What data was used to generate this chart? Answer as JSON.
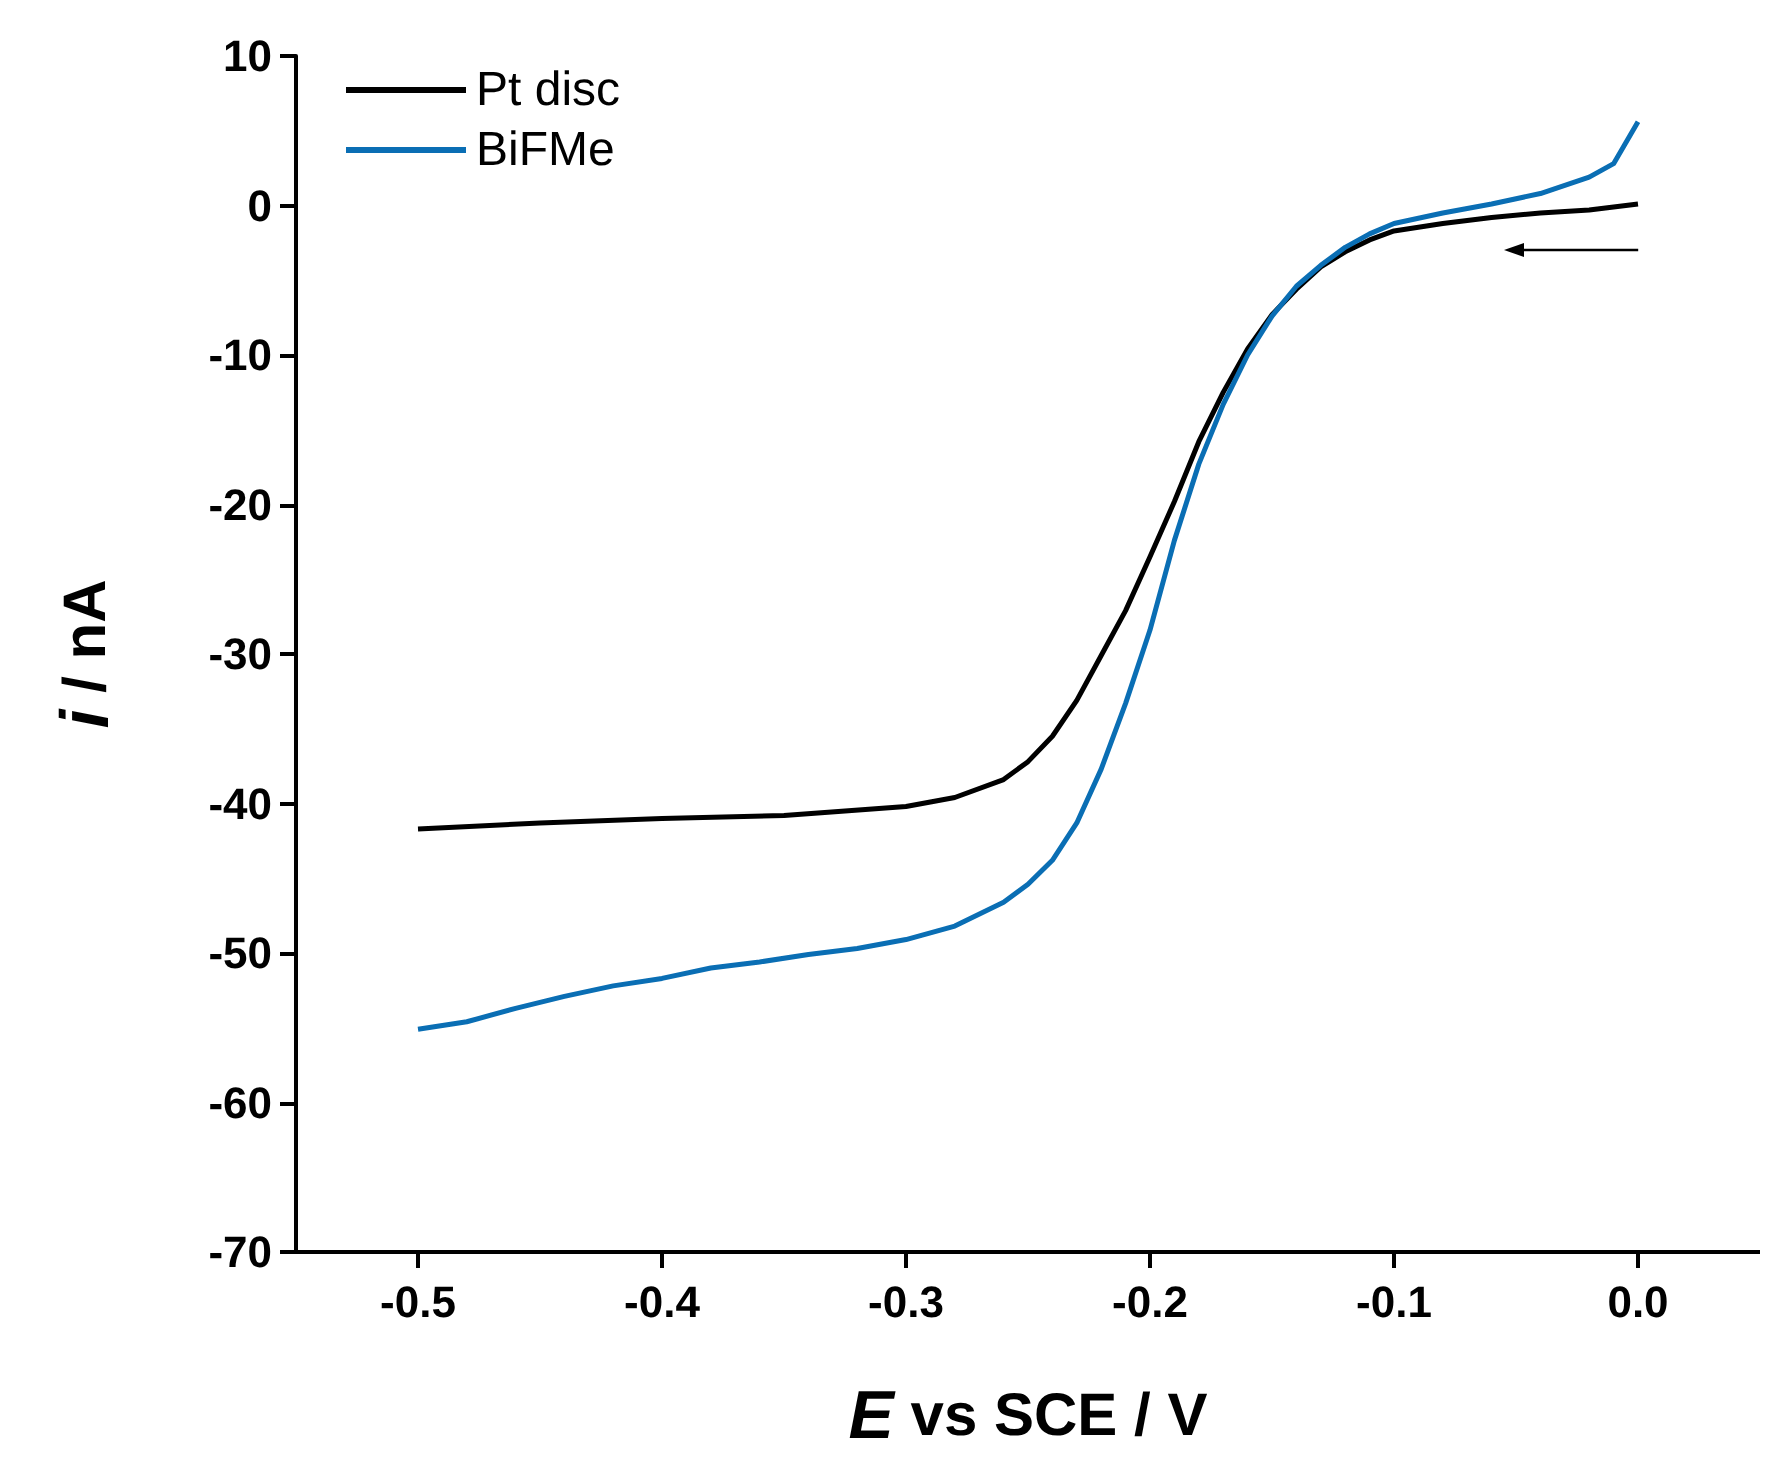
{
  "chart_data": {
    "type": "line",
    "xlabel": "E vs SCE / V",
    "ylabel": "i / nA",
    "xlim": [
      -0.55,
      0.05
    ],
    "ylim": [
      -70,
      10
    ],
    "xticks": [
      {
        "value": -0.5,
        "label": "-0.5"
      },
      {
        "value": -0.4,
        "label": "-0.4"
      },
      {
        "value": -0.3,
        "label": "-0.3"
      },
      {
        "value": -0.2,
        "label": "-0.2"
      },
      {
        "value": -0.1,
        "label": "-0.1"
      },
      {
        "value": 0,
        "label": "0.0"
      }
    ],
    "yticks": [
      -70,
      -60,
      -50,
      -40,
      -30,
      -20,
      -10,
      0,
      10
    ],
    "legend": "top left",
    "grid": false,
    "marker": "none",
    "line_style": "solid",
    "series": [
      {
        "name": "Pt disc",
        "color": "#000000",
        "x": [
          -0.5,
          -0.45,
          -0.4,
          -0.35,
          -0.3,
          -0.28,
          -0.26,
          -0.25,
          -0.24,
          -0.23,
          -0.22,
          -0.21,
          -0.2,
          -0.19,
          -0.18,
          -0.17,
          -0.16,
          -0.15,
          -0.14,
          -0.13,
          -0.12,
          -0.11,
          -0.1,
          -0.08,
          -0.06,
          -0.04,
          -0.02,
          0
        ],
        "values": [
          -41.7,
          -41.3,
          -41.0,
          -40.8,
          -40.2,
          -39.6,
          -38.4,
          -37.2,
          -35.5,
          -33.1,
          -30.1,
          -27.1,
          -23.5,
          -19.8,
          -15.8,
          -12.5,
          -9.6,
          -7.3,
          -5.6,
          -4.1,
          -3.1,
          -2.3,
          -1.7,
          -1.2,
          -0.8,
          -0.5,
          -0.3,
          0.1
        ]
      },
      {
        "name": "BiFMe",
        "color": "#0a6eb4",
        "x": [
          -0.5,
          -0.48,
          -0.46,
          -0.44,
          -0.42,
          -0.4,
          -0.38,
          -0.36,
          -0.34,
          -0.32,
          -0.3,
          -0.28,
          -0.26,
          -0.25,
          -0.24,
          -0.23,
          -0.22,
          -0.21,
          -0.2,
          -0.19,
          -0.18,
          -0.17,
          -0.16,
          -0.15,
          -0.14,
          -0.13,
          -0.12,
          -0.11,
          -0.1,
          -0.08,
          -0.06,
          -0.04,
          -0.02,
          -0.01,
          0
        ],
        "values": [
          -55.1,
          -54.6,
          -53.7,
          -52.9,
          -52.2,
          -51.7,
          -51.0,
          -50.6,
          -50.1,
          -49.7,
          -49.1,
          -48.2,
          -46.6,
          -45.4,
          -43.8,
          -41.3,
          -37.7,
          -33.3,
          -28.4,
          -22.4,
          -17.3,
          -13.3,
          -10.0,
          -7.4,
          -5.4,
          -4.0,
          -2.8,
          -1.9,
          -1.2,
          -0.5,
          0.1,
          0.8,
          1.9,
          2.8,
          5.6
        ]
      }
    ]
  }
}
